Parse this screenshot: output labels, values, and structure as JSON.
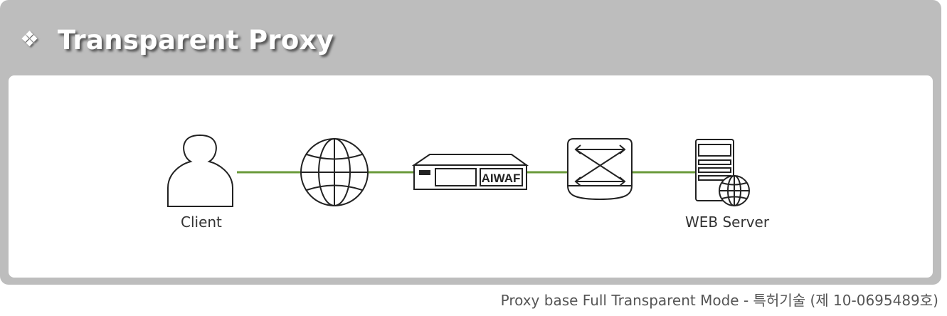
{
  "header": {
    "icon": "four-diamond-icon",
    "icon_glyph": "❖",
    "title": "Transparent Proxy"
  },
  "diagram": {
    "nodes": [
      {
        "id": "client",
        "icon": "person-icon",
        "label": "Client"
      },
      {
        "id": "internet",
        "icon": "globe-icon",
        "label": ""
      },
      {
        "id": "waf",
        "icon": "appliance-icon",
        "label": "AIWAF"
      },
      {
        "id": "switch",
        "icon": "switch-icon",
        "label": ""
      },
      {
        "id": "server",
        "icon": "web-server-icon",
        "label": "WEB Server"
      }
    ],
    "link_color": "#6a9a3a"
  },
  "caption": "Proxy base Full Transparent Mode - 특허기술 (제 10-0695489호)"
}
